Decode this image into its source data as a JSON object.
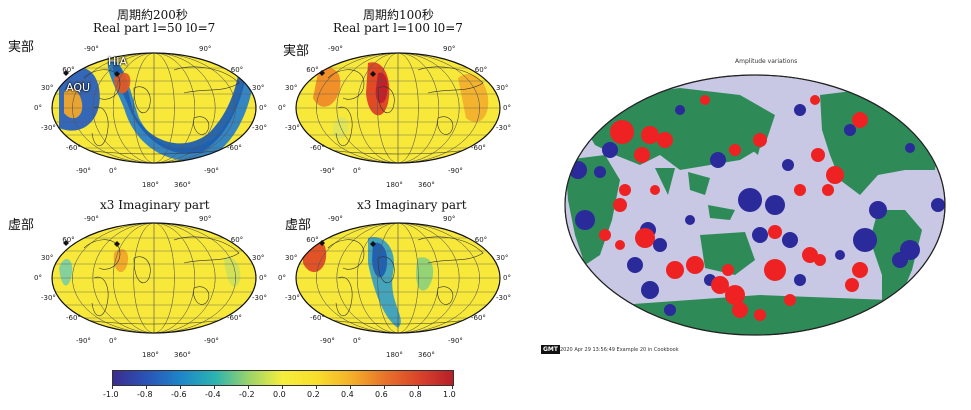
{
  "panels": {
    "top_left": {
      "row_label": "実部",
      "title1": "周期約200秒",
      "title2": "Real part l=50 l0=7"
    },
    "top_right": {
      "row_label": "実部",
      "title1": "周期約100秒",
      "title2": "Real part l=100 l0=7"
    },
    "bottom_left": {
      "row_label": "虚部",
      "title1": "x3 Imaginary part"
    },
    "bottom_right": {
      "row_label": "虚部",
      "title1": "x3 Imaginary part"
    }
  },
  "stations": {
    "hia": "HIA",
    "aqu": "AQU"
  },
  "grid_labels": {
    "left_lat": [
      "60°",
      "30°",
      "0°",
      "-30°",
      "-60°"
    ],
    "right_lat": [
      "60°",
      "30°",
      "0°",
      "-30°",
      "-60°"
    ],
    "top_lon": [
      "-90°",
      "90°"
    ],
    "bottom_lon": [
      "-90°",
      "0°",
      "180°",
      "360°",
      "-90°"
    ]
  },
  "colorbar": {
    "ticks": [
      "-1.0",
      "-0.8",
      "-0.6",
      "-0.4",
      "-0.2",
      "0.0",
      "0.2",
      "0.4",
      "0.6",
      "0.8",
      "1.0"
    ],
    "range": [
      -1.0,
      1.0
    ]
  },
  "right_map": {
    "title": "Amplitude variations",
    "footer_logo": "GMT",
    "footer_text": "2020 Apr 29 13:56:49 Example 20 in Cookbook",
    "colors": {
      "ocean": "#c8c8e4",
      "land": "#2e8b57",
      "red": "#ee2222",
      "blue": "#2a2a9a"
    }
  }
}
